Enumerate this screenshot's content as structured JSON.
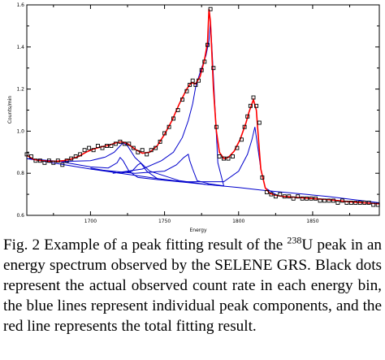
{
  "chart_data": {
    "type": "line",
    "title": "",
    "xlabel": "Energy",
    "ylabel": "Counts/min",
    "xlim": [
      1657,
      1895
    ],
    "ylim": [
      0.6,
      1.6
    ],
    "x_ticks": [
      1700,
      1750,
      1800,
      1850
    ],
    "x_tick_labels": [
      "1700",
      "1750",
      "1800",
      "1850"
    ],
    "y_ticks": [
      0.6,
      0.8,
      1.0,
      1.2,
      1.4,
      1.6
    ],
    "y_tick_labels": [
      "0.6",
      "0.8",
      "1.0",
      "1.2",
      "1.4",
      "1.6"
    ],
    "grid": false,
    "legend": "none",
    "observed": {
      "marker": "hollow-square",
      "color": "#000000",
      "x": [
        1657,
        1660,
        1663,
        1666,
        1669,
        1672,
        1675,
        1678,
        1681,
        1684,
        1687,
        1690,
        1693,
        1696,
        1699,
        1702,
        1705,
        1708,
        1711,
        1714,
        1717,
        1720,
        1723,
        1726,
        1729,
        1732,
        1735,
        1738,
        1741,
        1744,
        1747,
        1750,
        1753,
        1756,
        1759,
        1762,
        1765,
        1767,
        1769,
        1771,
        1773,
        1775,
        1777,
        1779,
        1781,
        1783,
        1785,
        1787,
        1790,
        1793,
        1796,
        1799,
        1802,
        1804,
        1806,
        1808,
        1810,
        1812,
        1814,
        1816,
        1819,
        1822,
        1825,
        1828,
        1831,
        1834,
        1837,
        1840,
        1843,
        1846,
        1849,
        1852,
        1855,
        1858,
        1861,
        1864,
        1867,
        1870,
        1873,
        1876,
        1879,
        1882,
        1885,
        1888,
        1891,
        1894
      ],
      "y": [
        0.89,
        0.88,
        0.86,
        0.86,
        0.85,
        0.86,
        0.85,
        0.86,
        0.84,
        0.86,
        0.87,
        0.88,
        0.89,
        0.91,
        0.92,
        0.91,
        0.93,
        0.92,
        0.93,
        0.93,
        0.94,
        0.95,
        0.94,
        0.94,
        0.92,
        0.9,
        0.91,
        0.89,
        0.91,
        0.92,
        0.95,
        0.99,
        1.02,
        1.06,
        1.1,
        1.15,
        1.19,
        1.22,
        1.24,
        1.22,
        1.24,
        1.29,
        1.33,
        1.41,
        1.58,
        1.3,
        1.02,
        0.88,
        0.87,
        0.87,
        0.88,
        0.92,
        0.96,
        1.02,
        1.07,
        1.12,
        1.16,
        1.12,
        1.04,
        0.78,
        0.71,
        0.7,
        0.69,
        0.7,
        0.69,
        0.69,
        0.68,
        0.69,
        0.68,
        0.68,
        0.68,
        0.68,
        0.67,
        0.67,
        0.67,
        0.67,
        0.66,
        0.67,
        0.66,
        0.66,
        0.66,
        0.66,
        0.66,
        0.66,
        0.65,
        0.65
      ]
    },
    "total_fit": {
      "color": "#ff0000",
      "x": [
        1657,
        1662,
        1667,
        1672,
        1677,
        1682,
        1687,
        1692,
        1697,
        1702,
        1707,
        1712,
        1717,
        1721,
        1725,
        1730,
        1735,
        1740,
        1745,
        1750,
        1755,
        1760,
        1765,
        1768,
        1771,
        1774,
        1777,
        1779,
        1780,
        1781,
        1783,
        1785,
        1787,
        1790,
        1793,
        1797,
        1801,
        1805,
        1807,
        1809,
        1810,
        1812,
        1813,
        1815,
        1818,
        1821,
        1825,
        1830,
        1840,
        1850,
        1860,
        1870,
        1880,
        1895
      ],
      "y": [
        0.885,
        0.865,
        0.86,
        0.857,
        0.857,
        0.86,
        0.868,
        0.88,
        0.9,
        0.915,
        0.925,
        0.932,
        0.944,
        0.95,
        0.94,
        0.915,
        0.895,
        0.9,
        0.93,
        0.985,
        1.05,
        1.13,
        1.2,
        1.23,
        1.225,
        1.26,
        1.34,
        1.42,
        1.58,
        1.52,
        1.2,
        1.0,
        0.9,
        0.87,
        0.875,
        0.905,
        0.96,
        1.04,
        1.09,
        1.13,
        1.15,
        1.1,
        1.0,
        0.82,
        0.73,
        0.705,
        0.695,
        0.69,
        0.685,
        0.68,
        0.675,
        0.668,
        0.662,
        0.655
      ]
    },
    "components": {
      "color": "#0000cc",
      "series": [
        {
          "x": [
            1657,
            1700,
            1740,
            1760,
            1780,
            1800,
            1815,
            1830,
            1860,
            1895
          ],
          "y": [
            0.87,
            0.82,
            0.78,
            0.76,
            0.745,
            0.732,
            0.72,
            0.71,
            0.69,
            0.66
          ]
        },
        {
          "x": [
            1657,
            1680,
            1700,
            1710,
            1716,
            1720,
            1722,
            1725,
            1730,
            1740,
            1760,
            1780
          ],
          "y": [
            0.87,
            0.856,
            0.86,
            0.877,
            0.9,
            0.93,
            0.945,
            0.93,
            0.875,
            0.81,
            0.765,
            0.745
          ]
        },
        {
          "x": [
            1680,
            1700,
            1712,
            1718,
            1720,
            1722,
            1726,
            1732,
            1745,
            1760
          ],
          "y": [
            0.855,
            0.83,
            0.825,
            0.85,
            0.875,
            0.86,
            0.81,
            0.78,
            0.77,
            0.76
          ]
        },
        {
          "x": [
            1700,
            1720,
            1728,
            1732,
            1734,
            1738,
            1745,
            1760
          ],
          "y": [
            0.825,
            0.8,
            0.81,
            0.84,
            0.848,
            0.81,
            0.775,
            0.762
          ]
        },
        {
          "x": [
            1700,
            1730,
            1750,
            1758,
            1763,
            1766,
            1767,
            1769,
            1772,
            1780,
            1790
          ],
          "y": [
            0.82,
            0.8,
            0.81,
            0.84,
            0.875,
            0.89,
            0.86,
            0.82,
            0.765,
            0.75,
            0.74
          ]
        },
        {
          "x": [
            1715,
            1735,
            1748,
            1756,
            1762,
            1766,
            1769,
            1771,
            1774,
            1778,
            1780,
            1781,
            1782,
            1784,
            1786,
            1790
          ],
          "y": [
            0.8,
            0.82,
            0.86,
            0.9,
            0.97,
            1.05,
            1.13,
            1.21,
            1.28,
            1.36,
            1.43,
            1.52,
            1.4,
            1.12,
            0.85,
            0.74
          ]
        },
        {
          "x": [
            1760,
            1790,
            1800,
            1806,
            1809,
            1811,
            1813,
            1815,
            1818,
            1825
          ],
          "y": [
            0.76,
            0.76,
            0.81,
            0.89,
            0.96,
            1.02,
            0.92,
            0.82,
            0.73,
            0.7
          ]
        }
      ]
    }
  },
  "caption": {
    "line1_before": "Fig. 2 Example of a peak fitting result of the ",
    "line1_sup": "238",
    "line1_after": "U peak",
    "line2": "in an energy spectrum observed by the SELENE GRS.",
    "line3": "Black dots represent the actual observed count rate in",
    "line4": "each energy bin, the blue lines represent individual",
    "line5": "peak components, and the red line represents the total",
    "line6": "fitting result."
  }
}
